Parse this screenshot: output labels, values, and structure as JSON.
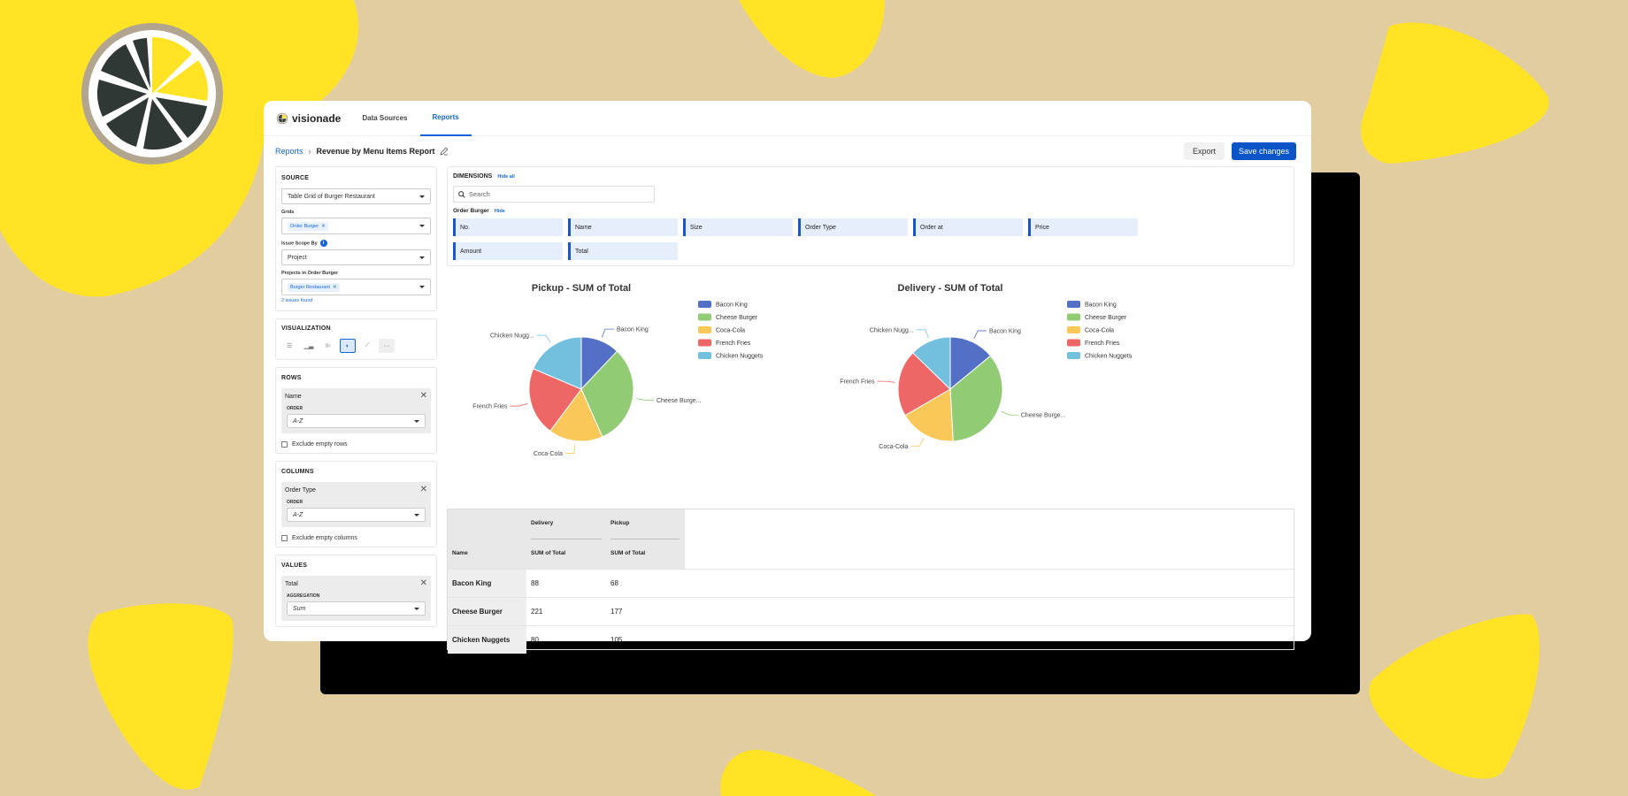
{
  "nav": {
    "brand": "visionade",
    "tabs": [
      {
        "label": "Data Sources",
        "active": false
      },
      {
        "label": "Reports",
        "active": true
      }
    ]
  },
  "breadcrumb": {
    "root": "Reports",
    "separator": "›",
    "current": "Revenue by Menu Items Report"
  },
  "actions": {
    "export_label": "Export",
    "save_label": "Save changes"
  },
  "source": {
    "title": "SOURCE",
    "selected": "Table Grid of Burger Restaurant",
    "grids_label": "Grids",
    "grids_chip": "Order Burger",
    "issue_scope_label": "Issue Scope By",
    "issue_scope_info": "i",
    "issue_scope_value": "Project",
    "projects_label": "Projects in Order Burger",
    "projects_chip": "Burger Restaurant",
    "issues_found": "2 issues found"
  },
  "visualization": {
    "title": "VISUALIZATION",
    "selected": "pie-chart"
  },
  "rows": {
    "title": "ROWS",
    "field": "Name",
    "order_label": "ORDER",
    "order_value": "A-Z",
    "exclude_label": "Exclude empty rows"
  },
  "columns": {
    "title": "COLUMNS",
    "field": "Order Type",
    "order_label": "ORDER",
    "order_value": "A-Z",
    "exclude_label": "Exclude empty columns"
  },
  "values": {
    "title": "VALUES",
    "field": "Total",
    "agg_label": "AGGREGATION",
    "agg_value": "Sum"
  },
  "dimensions": {
    "title": "DIMENSIONS",
    "hide_all": "Hide all",
    "search_placeholder": "Search",
    "group_title": "Order Burger",
    "group_hide": "Hide",
    "fields": [
      "No.",
      "Name",
      "Size",
      "Order Type",
      "Order at",
      "Price",
      "Amount",
      "Total"
    ]
  },
  "colors": {
    "Bacon King": "#5470c6",
    "Cheese Burger": "#91cc75",
    "Coca-Cola": "#fac858",
    "French Fries": "#ee6666",
    "Chicken Nuggets": "#73c0de"
  },
  "chart_data": [
    {
      "type": "pie",
      "title": "Pickup - SUM of Total",
      "categories": [
        "Bacon King",
        "Cheese Burger",
        "Coca-Cola",
        "French Fries",
        "Chicken Nuggets"
      ],
      "values": [
        68,
        177,
        95,
        120,
        105
      ],
      "slice_labels": [
        "Bacon King",
        "Cheese Burge...",
        "Coca-Cola",
        "French Fries",
        "Chicken Nugg..."
      ],
      "legend": "right"
    },
    {
      "type": "pie",
      "title": "Delivery - SUM of Total",
      "categories": [
        "Bacon King",
        "Cheese Burger",
        "Coca-Cola",
        "French Fries",
        "Chicken Nuggets"
      ],
      "values": [
        88,
        221,
        110,
        130,
        80
      ],
      "slice_labels": [
        "Bacon King",
        "Cheese Burge...",
        "Coca-Cola",
        "French Fries",
        "Chicken Nugg..."
      ],
      "legend": "right"
    }
  ],
  "table": {
    "header_group": [
      "Delivery",
      "Pickup"
    ],
    "name_header": "Name",
    "measure_header": "SUM of Total",
    "rows": [
      {
        "name": "Bacon King",
        "delivery": "88",
        "pickup": "68"
      },
      {
        "name": "Cheese Burger",
        "delivery": "221",
        "pickup": "177"
      },
      {
        "name": "Chicken Nuggets",
        "delivery": "80",
        "pickup": "105"
      }
    ]
  }
}
